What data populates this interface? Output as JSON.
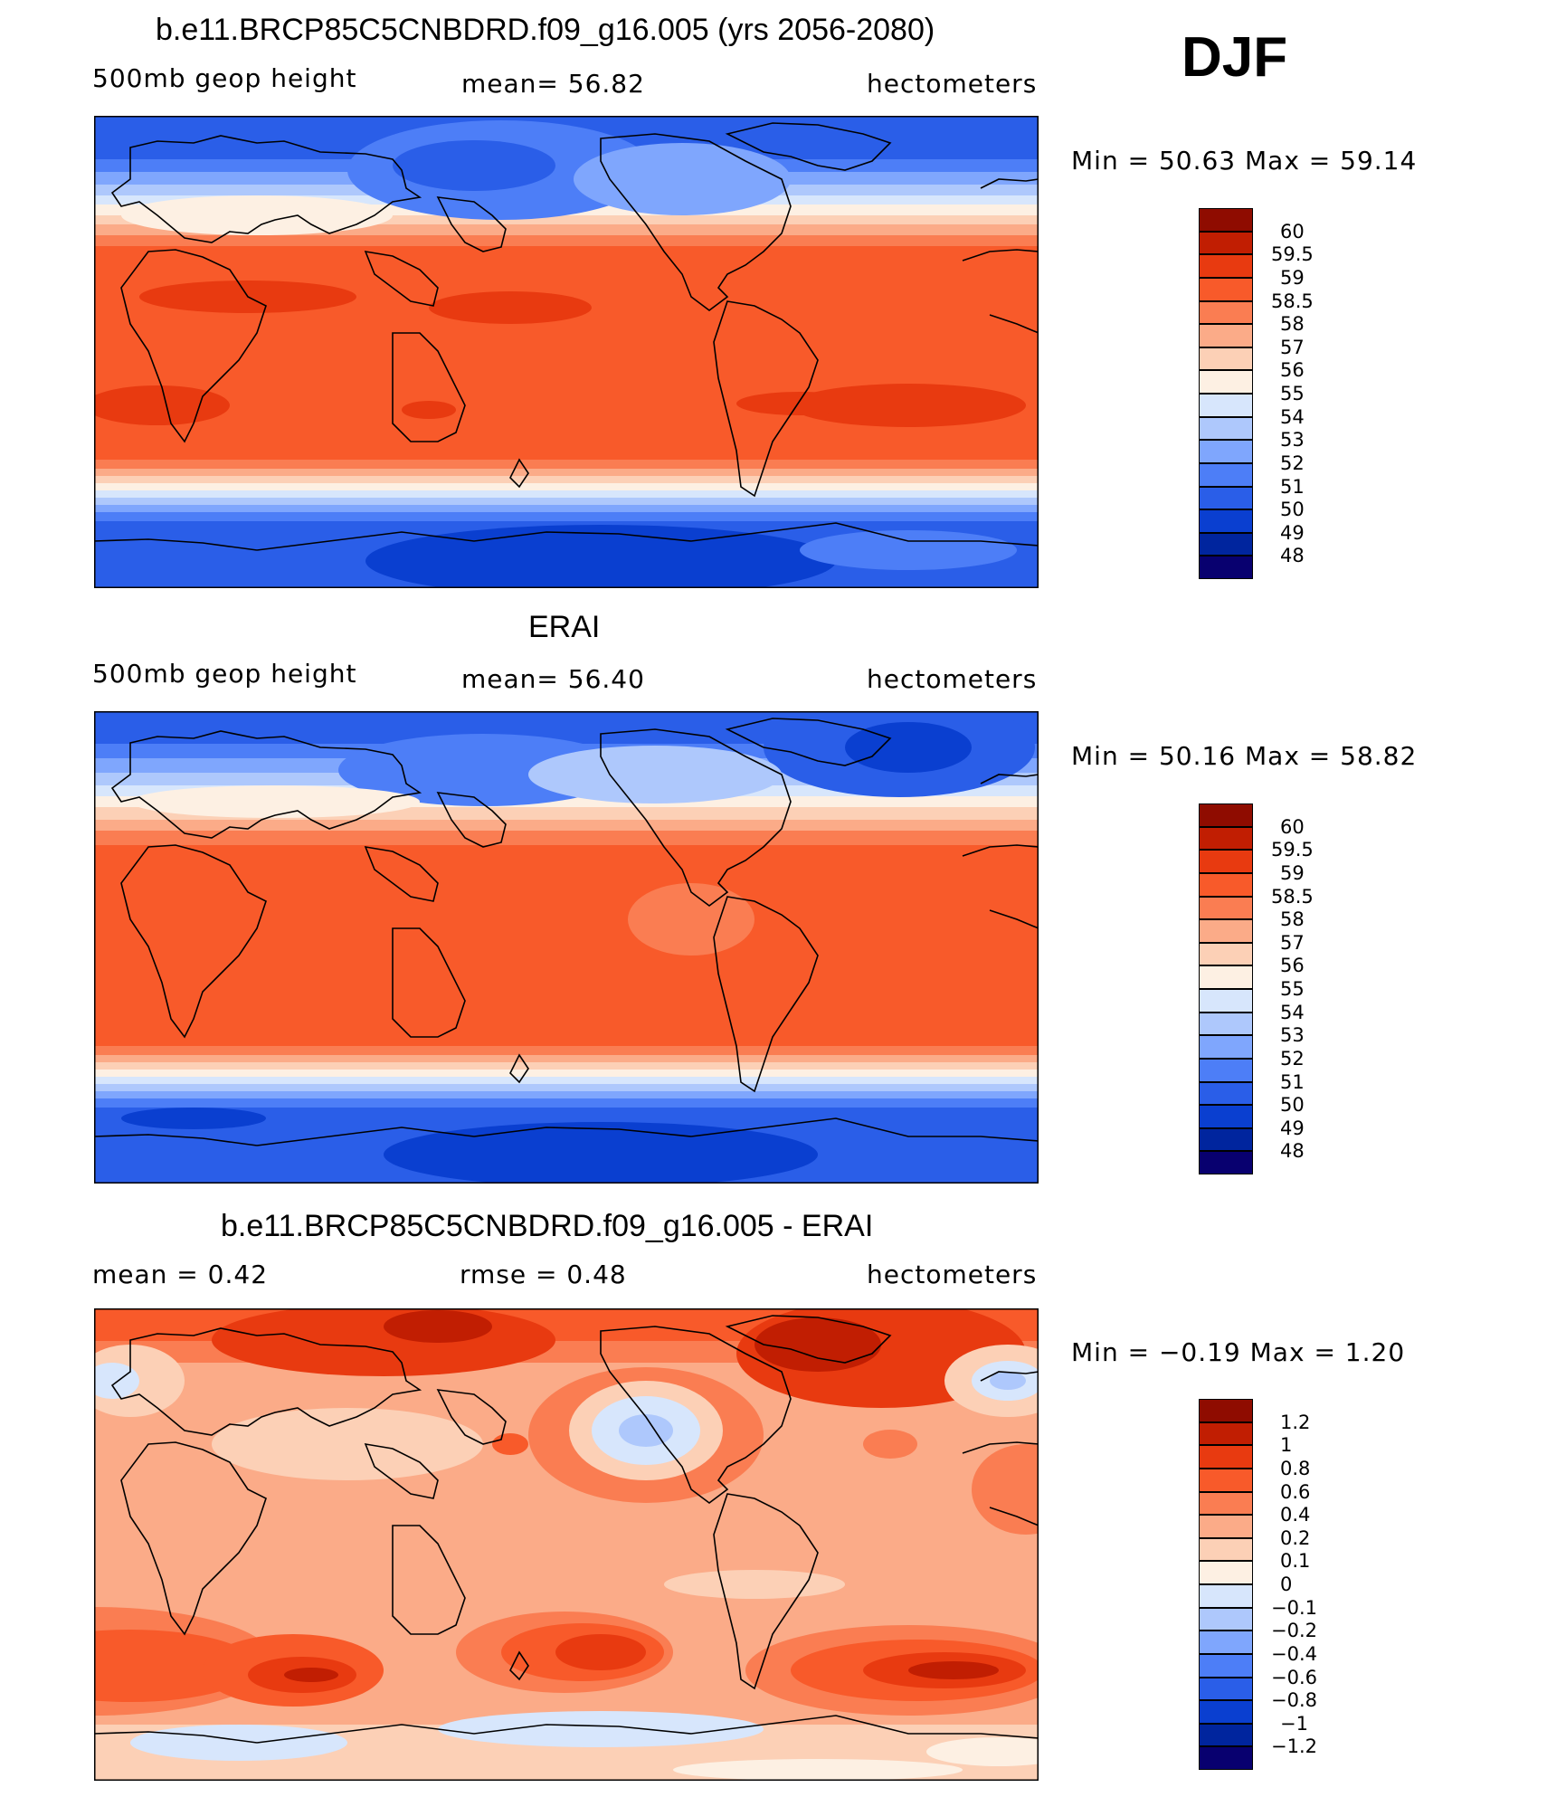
{
  "season": "DJF",
  "colors": {
    "sixty": [
      "#08006f",
      "#00259e",
      "#0a3fd0",
      "#2a5ee8",
      "#4d7ef7",
      "#7fa6fd",
      "#aec8fc",
      "#d7e6fc",
      "#fdf0e3",
      "#fcd0b6",
      "#fbab88",
      "#fa7d52",
      "#f85a2a",
      "#e83a10",
      "#c11e02",
      "#8f0c00"
    ],
    "diff": [
      "#08006f",
      "#00259e",
      "#0a3fd0",
      "#2a5ee8",
      "#4d7ef7",
      "#7fa6fd",
      "#aec8fc",
      "#d7e6fc",
      "#fdf0e3",
      "#fcd0b6",
      "#fbab88",
      "#fa7d52",
      "#f85a2a",
      "#e83a10",
      "#c11e02",
      "#8f0c00"
    ]
  },
  "panels": [
    {
      "title": "b.e11.BRCP85C5CNBDRD.f09_g16.005 (yrs 2056-2080)",
      "left_label": "500mb geop height",
      "center_label": "mean=   56.82",
      "units": "hectometers",
      "minmax": "Min =   50.63 Max =   59.14",
      "levels": [
        "60",
        "59.5",
        "59",
        "58.5",
        "58",
        "57",
        "56",
        "55",
        "54",
        "53",
        "52",
        "51",
        "50",
        "49",
        "48"
      ]
    },
    {
      "title": "ERAI",
      "left_label": "500mb geop height",
      "center_label": "mean=   56.40",
      "units": "hectometers",
      "minmax": "Min =   50.16 Max =   58.82",
      "levels": [
        "60",
        "59.5",
        "59",
        "58.5",
        "58",
        "57",
        "56",
        "55",
        "54",
        "53",
        "52",
        "51",
        "50",
        "49",
        "48"
      ]
    },
    {
      "title": "b.e11.BRCP85C5CNBDRD.f09_g16.005 - ERAI",
      "left_label": "mean =     0.42",
      "center_label": "rmse =     0.48",
      "units": "hectometers",
      "minmax": "Min =   −0.19 Max =     1.20",
      "levels": [
        "1.2",
        "1",
        "0.8",
        "0.6",
        "0.4",
        "0.2",
        "0.1",
        "0",
        "−0.1",
        "−0.2",
        "−0.4",
        "−0.6",
        "−0.8",
        "−1",
        "−1.2"
      ]
    }
  ]
}
